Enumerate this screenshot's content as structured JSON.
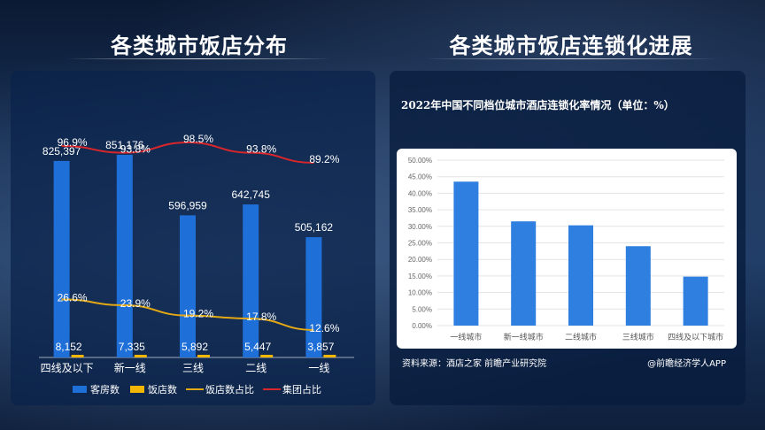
{
  "left": {
    "title": "各类城市饭店分布",
    "chart_data": {
      "type": "bar",
      "categories": [
        "四线及以下",
        "新一线",
        "三线",
        "二线",
        "一线"
      ],
      "series": [
        {
          "name": "客房数",
          "kind": "bar",
          "axis": "left",
          "color": "#1f6fd8",
          "values": [
            825397,
            851176,
            596959,
            642745,
            505162
          ],
          "labels": [
            "825,397",
            "851,176",
            "596,959",
            "642,745",
            "505,162"
          ]
        },
        {
          "name": "饭店数",
          "kind": "bar",
          "axis": "left",
          "color": "#f2b705",
          "values": [
            8152,
            7335,
            5892,
            5447,
            3857
          ],
          "labels": [
            "8,152",
            "7,335",
            "5,892",
            "5,447",
            "3,857"
          ]
        },
        {
          "name": "饭店数占比",
          "kind": "line",
          "axis": "right",
          "color": "#e3a814",
          "values": [
            26.6,
            23.9,
            19.2,
            17.8,
            12.6
          ],
          "labels": [
            "26.6%",
            "23.9%",
            "19.2%",
            "17.8%",
            "12.6%"
          ]
        },
        {
          "name": "集团占比",
          "kind": "line",
          "axis": "right",
          "color": "#d9262b",
          "values": [
            96.9,
            93.8,
            98.5,
            93.8,
            89.2
          ],
          "labels": [
            "96.9%",
            "93.8%",
            "98.5%",
            "93.8%",
            "89.2%"
          ]
        }
      ],
      "ylim_left": [
        0,
        1100000
      ],
      "ylim_right": [
        0,
        120
      ],
      "legend": "bottom"
    }
  },
  "right": {
    "title": "各类城市饭店连锁化进展",
    "subtitle": "2022年中国不同档位城市酒店连锁化率情况（单位：%）",
    "chart_data": {
      "type": "bar",
      "categories": [
        "一线城市",
        "新一线城市",
        "二线城市",
        "三线城市",
        "四线及以下城市"
      ],
      "values": [
        43.5,
        31.5,
        30.3,
        24.0,
        14.8
      ],
      "ylim": [
        0,
        50
      ],
      "yticks": [
        "0.00%",
        "5.00%",
        "10.00%",
        "15.00%",
        "20.00%",
        "25.00%",
        "30.00%",
        "35.00%",
        "40.00%",
        "45.00%",
        "50.00%"
      ],
      "bar_color": "#2e7fe0"
    },
    "source": "资料来源：酒店之家 前瞻产业研究院",
    "credit": "@前瞻经济学人APP"
  },
  "watermark": "前瞻产业研究院"
}
